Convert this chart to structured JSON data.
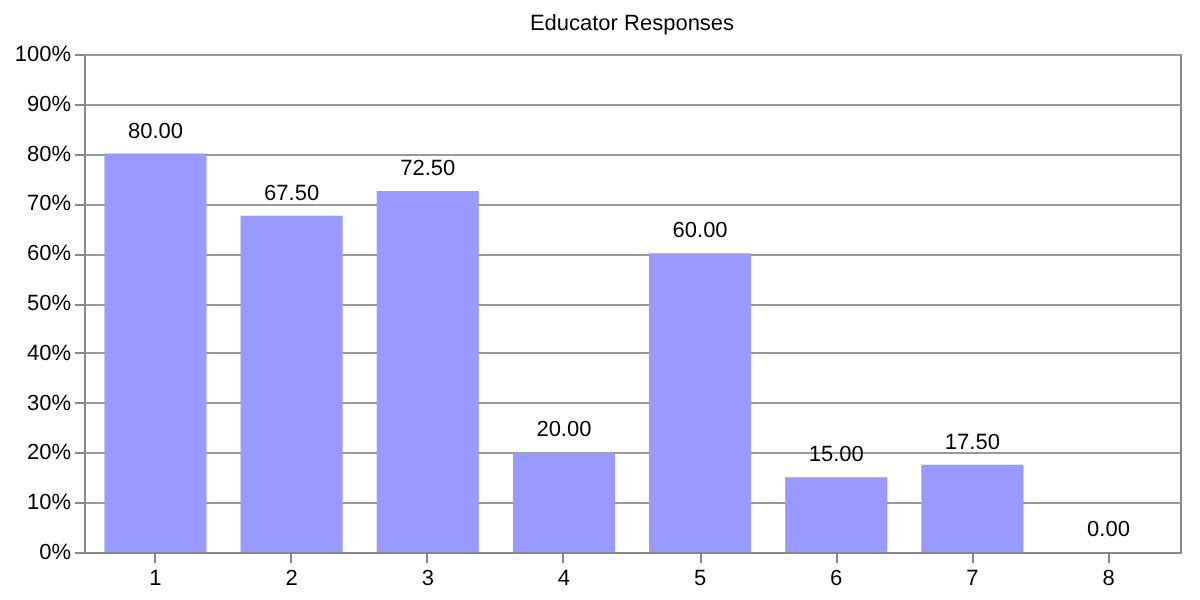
{
  "chart_data": {
    "type": "bar",
    "title": "Educator Responses",
    "categories": [
      "1",
      "2",
      "3",
      "4",
      "5",
      "6",
      "7",
      "8"
    ],
    "values": [
      80,
      67.5,
      72.5,
      20,
      60,
      15,
      17.5,
      0
    ],
    "value_labels": [
      "80.00",
      "67.50",
      "72.50",
      "20.00",
      "60.00",
      "15.00",
      "17.50",
      "0.00"
    ],
    "color": "#9999ff",
    "ylim": [
      0,
      100
    ],
    "yticks": [
      {
        "value": 0,
        "label": "0%"
      },
      {
        "value": 10,
        "label": "10%"
      },
      {
        "value": 20,
        "label": "20%"
      },
      {
        "value": 30,
        "label": "30%"
      },
      {
        "value": 40,
        "label": "40%"
      },
      {
        "value": 50,
        "label": "50%"
      },
      {
        "value": 60,
        "label": "60%"
      },
      {
        "value": 70,
        "label": "70%"
      },
      {
        "value": 80,
        "label": "80%"
      },
      {
        "value": 90,
        "label": "90%"
      },
      {
        "value": 100,
        "label": "100%"
      }
    ],
    "grid": "y"
  }
}
